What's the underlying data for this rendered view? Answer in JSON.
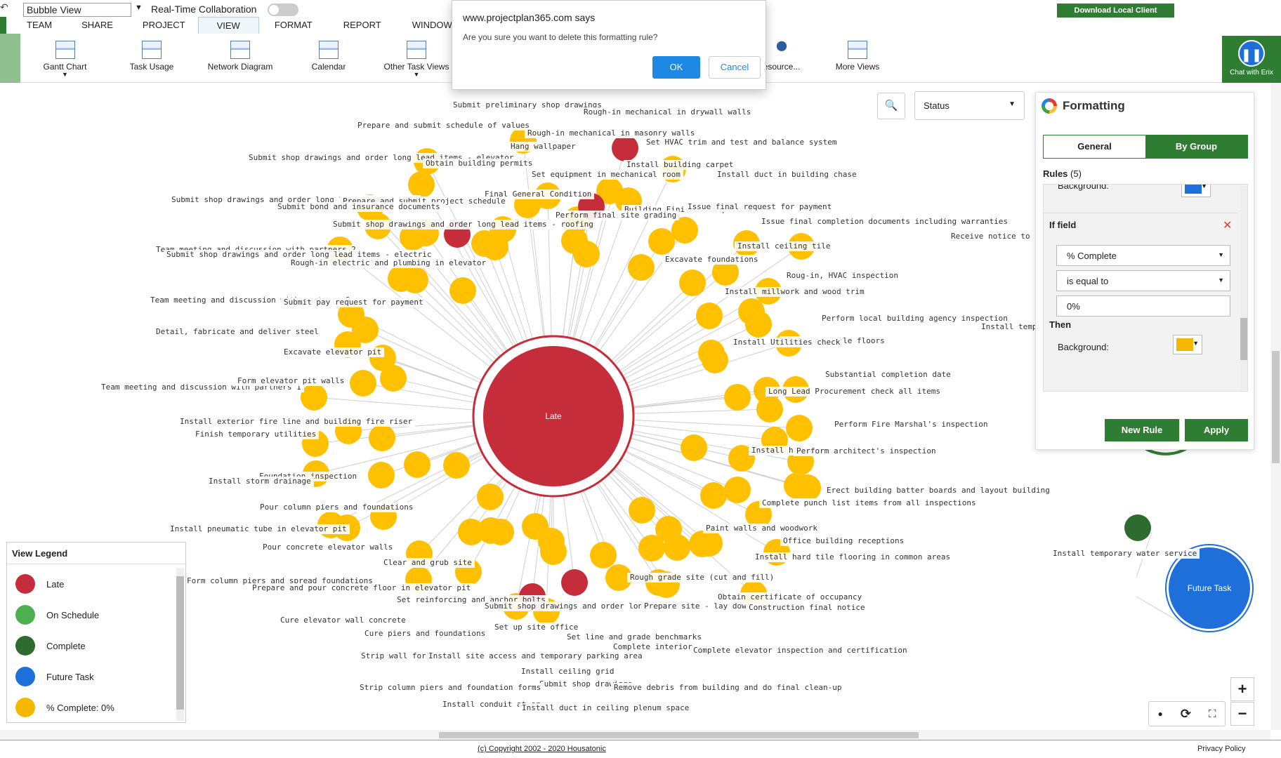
{
  "toolbar": {
    "view_select": "Bubble View",
    "realtime_label": "Real-Time Collaboration",
    "download_label": "Download Local Client",
    "chat_label": "Chat with Erix"
  },
  "menu": [
    "TEAM",
    "SHARE",
    "PROJECT",
    "VIEW",
    "FORMAT",
    "REPORT",
    "WINDOW"
  ],
  "ribbon": {
    "gantt": "Gantt Chart",
    "task_usage": "Task Usage",
    "network": "Network Diagram",
    "calendar": "Calendar",
    "other_views": "Other Task Views",
    "resource": "esource...",
    "more_views": "More Views"
  },
  "dialog": {
    "title": "www.projectplan365.com says",
    "message": "Are you sure you want to delete this formatting rule?",
    "ok": "OK",
    "cancel": "Cancel"
  },
  "status_select": "Status",
  "formatting": {
    "title": "Formatting",
    "tab_general": "General",
    "tab_group": "By Group",
    "rules_label": "Rules",
    "rules_count": "(5)",
    "bg_top_label": "Background:",
    "bg_top_color": "#1e6fd9",
    "if_field": "If field",
    "field": "% Complete",
    "operator": "is equal to",
    "value": "0%",
    "then": "Then",
    "background_label": "Background:",
    "background_color": "#f5b800",
    "new_rule": "New Rule",
    "apply": "Apply"
  },
  "legend": {
    "title": "View Legend",
    "items": [
      {
        "label": "Late",
        "color": "#c62d3a"
      },
      {
        "label": "On Schedule",
        "color": "#4caf50"
      },
      {
        "label": "Complete",
        "color": "#2e6b2e"
      },
      {
        "label": "Future Task",
        "color": "#1e6fd9"
      },
      {
        "label": "% Complete: 0%",
        "color": "#f5b800"
      }
    ]
  },
  "center_bubble": "Late",
  "future_bubble": "Future Task",
  "colors": {
    "late": "#c62d3a",
    "pending": "#ffc000",
    "complete": "#2e6b2e",
    "future": "#1e6fd9",
    "green": "#2f7d32"
  },
  "task_labels": [
    "Submit preliminary shop drawings",
    "Rough-in mechanical in drywall walls",
    "Prepare and submit schedule of values",
    "Rough-in mechanical in masonry walls",
    "Hang wallpaper",
    "Set HVAC trim and test and balance system",
    "Submit shop drawings and order long lead items - elevator",
    "Obtain building permits",
    "Install building carpet",
    "Set equipment in mechanical room",
    "Install duct in building chase",
    "Final General Condition",
    "Submit shop drawings and order long lead items - HVAC",
    "Prepare and submit project schedule",
    "Submit bond and insurance documents",
    "Building Finishes inspection",
    "Issue final request for payment",
    "Perform final site grading",
    "Issue final completion documents including warranties",
    "Submit shop drawings and order long lead items - roofing",
    "Receive notice to pro",
    "Team meeting and discussion with partners 2",
    "Install ceiling tile",
    "Submit shop drawings and order long lead items - electric",
    "Excavate foundations",
    "Rough-in electric and plumbing in elevator",
    "Roug-in, HVAC inspection",
    "Team meeting and discussion with partners 3",
    "Submit pay request for payment",
    "Install millwork and wood trim",
    "Perform local building agency inspection",
    "Install tempor",
    "Detail, fabricate and deliver steel",
    "Clean hard tile floors",
    "Install Utilities check",
    "Excavate elevator pit",
    "Substantial completion date",
    "Team meeting and discussion with partners 1",
    "Form elevator pit walls",
    "Long Lead Procurement check all items",
    "Install exterior fire line and building fire riser",
    "Perform Fire Marshal's inspection",
    "Finish temporary utilities",
    "Install hardware",
    "Perform architect's inspection",
    "Foundation inspection",
    "Install storm drainage",
    "Erect building batter boards and layout building",
    "Complete punch list items from all inspections",
    "Pour column piers and foundations",
    "Install pneumatic tube in elevator pit",
    "Paint walls and woodwork",
    "Office building receptions",
    "Pour concrete elevator walls",
    "Install hard tile flooring in common areas",
    "Install temporary water service",
    "Clear and grub site",
    "Form column piers and spread foundations",
    "Rough grade site (cut and fill)",
    "Prepare and pour concrete floor in elevator pit",
    "Set reinforcing and anchor bolts",
    "Obtain certificate of occupancy",
    "Submit shop drawings and order long lead items",
    "Prepare site - lay down yard and",
    "Construction final notice",
    "Cure elevator wall concrete",
    "Set up site office",
    "Cure piers and foundations",
    "Set line and grade benchmarks",
    "Complete interior",
    "Complete elevator inspection and certification",
    "Strip wall forms",
    "Install site access and temporary parking area",
    "Install ceiling grid",
    "Submit shop drawings",
    "Strip column piers and foundation forms",
    "Remove debris from building and do final clean-up",
    "Install conduit at cr",
    "Install duct in ceiling plenum space"
  ],
  "footer": {
    "copyright": "(c) Copyright 2002 - 2020 Housatonic",
    "privacy": "Privacy Policy"
  }
}
